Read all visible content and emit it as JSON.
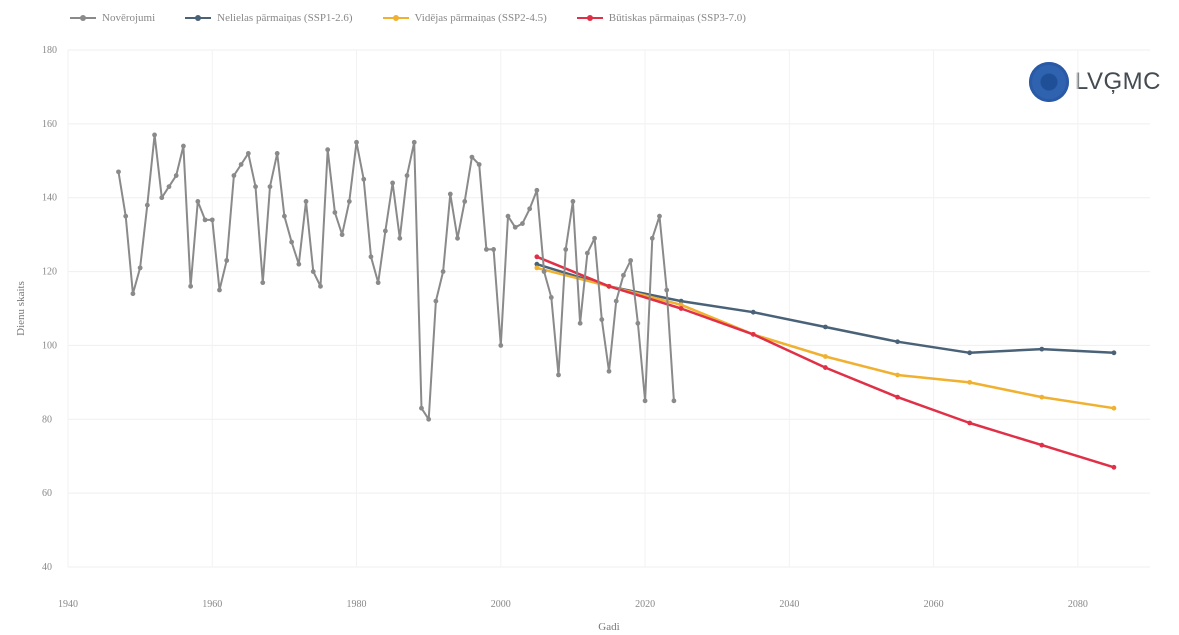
{
  "legend": [
    {
      "label": "Novērojumi",
      "color": "#8a8a8a"
    },
    {
      "label": "Nelielas pārmaiņas (SSP1-2.6)",
      "color": "#4a6278"
    },
    {
      "label": "Vidējas pārmaiņas (SSP2-4.5)",
      "color": "#f0b030"
    },
    {
      "label": "Būtiskas pārmaiņas (SSP3-7.0)",
      "color": "#e03048"
    }
  ],
  "logo": {
    "text": "LVĢMC",
    "icon": "lvgmc-logo-icon"
  },
  "chart_data": {
    "type": "line",
    "xlabel": "Gadi",
    "ylabel": "Dienu skaits",
    "xlim": [
      1940,
      2090
    ],
    "ylim": [
      40,
      180
    ],
    "x_ticks": [
      1940,
      1960,
      1980,
      2000,
      2020,
      2040,
      2060,
      2080
    ],
    "y_ticks": [
      40,
      60,
      80,
      100,
      120,
      140,
      160,
      180
    ],
    "grid": true,
    "legend_position": "top",
    "series": [
      {
        "name": "Novērojumi",
        "color": "#8a8a8a",
        "points": [
          [
            1947,
            147
          ],
          [
            1948,
            135
          ],
          [
            1949,
            114
          ],
          [
            1950,
            121
          ],
          [
            1951,
            138
          ],
          [
            1952,
            157
          ],
          [
            1953,
            140
          ],
          [
            1954,
            143
          ],
          [
            1955,
            146
          ],
          [
            1956,
            154
          ],
          [
            1957,
            116
          ],
          [
            1958,
            139
          ],
          [
            1959,
            134
          ],
          [
            1960,
            134
          ],
          [
            1961,
            115
          ],
          [
            1962,
            123
          ],
          [
            1963,
            146
          ],
          [
            1964,
            149
          ],
          [
            1965,
            152
          ],
          [
            1966,
            143
          ],
          [
            1967,
            117
          ],
          [
            1968,
            143
          ],
          [
            1969,
            152
          ],
          [
            1970,
            135
          ],
          [
            1971,
            128
          ],
          [
            1972,
            122
          ],
          [
            1973,
            139
          ],
          [
            1974,
            120
          ],
          [
            1975,
            116
          ],
          [
            1976,
            153
          ],
          [
            1977,
            136
          ],
          [
            1978,
            130
          ],
          [
            1979,
            139
          ],
          [
            1980,
            155
          ],
          [
            1981,
            145
          ],
          [
            1982,
            124
          ],
          [
            1983,
            117
          ],
          [
            1984,
            131
          ],
          [
            1985,
            144
          ],
          [
            1986,
            129
          ],
          [
            1987,
            146
          ],
          [
            1988,
            155
          ],
          [
            1989,
            83
          ],
          [
            1990,
            80
          ],
          [
            1991,
            112
          ],
          [
            1992,
            120
          ],
          [
            1993,
            141
          ],
          [
            1994,
            129
          ],
          [
            1995,
            139
          ],
          [
            1996,
            151
          ],
          [
            1997,
            149
          ],
          [
            1998,
            126
          ],
          [
            1999,
            126
          ],
          [
            2000,
            100
          ],
          [
            2001,
            135
          ],
          [
            2002,
            132
          ],
          [
            2003,
            133
          ],
          [
            2004,
            137
          ],
          [
            2005,
            142
          ],
          [
            2006,
            120
          ],
          [
            2007,
            113
          ],
          [
            2008,
            92
          ],
          [
            2009,
            126
          ],
          [
            2010,
            139
          ],
          [
            2011,
            106
          ],
          [
            2012,
            125
          ],
          [
            2013,
            129
          ],
          [
            2014,
            107
          ],
          [
            2015,
            93
          ],
          [
            2016,
            112
          ],
          [
            2017,
            119
          ],
          [
            2018,
            123
          ],
          [
            2019,
            106
          ],
          [
            2020,
            85
          ],
          [
            2021,
            129
          ],
          [
            2022,
            135
          ],
          [
            2023,
            115
          ],
          [
            2024,
            85
          ]
        ]
      },
      {
        "name": "Nelielas pārmaiņas (SSP1-2.6)",
        "color": "#4a6278",
        "points": [
          [
            2005,
            122
          ],
          [
            2015,
            116
          ],
          [
            2025,
            112
          ],
          [
            2035,
            109
          ],
          [
            2045,
            105
          ],
          [
            2055,
            101
          ],
          [
            2065,
            98
          ],
          [
            2075,
            99
          ],
          [
            2085,
            98
          ]
        ]
      },
      {
        "name": "Vidējas pārmaiņas (SSP2-4.5)",
        "color": "#f0b030",
        "points": [
          [
            2005,
            121
          ],
          [
            2015,
            116
          ],
          [
            2025,
            111
          ],
          [
            2035,
            103
          ],
          [
            2045,
            97
          ],
          [
            2055,
            92
          ],
          [
            2065,
            90
          ],
          [
            2075,
            86
          ],
          [
            2085,
            83
          ]
        ]
      },
      {
        "name": "Būtiskas pārmaiņas (SSP3-7.0)",
        "color": "#e03048",
        "points": [
          [
            2005,
            124
          ],
          [
            2015,
            116
          ],
          [
            2025,
            110
          ],
          [
            2035,
            103
          ],
          [
            2045,
            94
          ],
          [
            2055,
            86
          ],
          [
            2065,
            79
          ],
          [
            2075,
            73
          ],
          [
            2085,
            67
          ]
        ]
      }
    ]
  }
}
